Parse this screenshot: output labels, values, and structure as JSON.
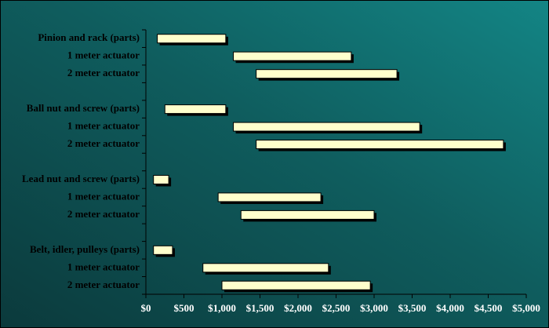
{
  "chart_data": {
    "type": "floating-bar",
    "categories": [
      "Pinion and rack (parts)",
      "1 meter actuator",
      "2 meter actuator",
      null,
      "Ball nut and screw (parts)",
      "1 meter actuator",
      "2 meter actuator",
      null,
      "Lead nut and screw (parts)",
      "1 meter actuator",
      "2 meter actuator",
      null,
      "Belt, idler, pulleys (parts)",
      "1 meter actuator",
      "2 meter actuator"
    ],
    "low": [
      150,
      1150,
      1450,
      null,
      250,
      1150,
      1450,
      null,
      100,
      950,
      1250,
      null,
      100,
      750,
      1000
    ],
    "high": [
      1050,
      2700,
      3300,
      null,
      1050,
      3600,
      4700,
      null,
      300,
      2300,
      3000,
      null,
      350,
      2400,
      2950
    ],
    "color": "#ffffcc",
    "xlim": [
      0,
      5000
    ],
    "xticks": [
      {
        "value": 0,
        "label": "$0"
      },
      {
        "value": 500,
        "label": "$500"
      },
      {
        "value": 1000,
        "label": "$1,000"
      },
      {
        "value": 1500,
        "label": "$1,500"
      },
      {
        "value": 2000,
        "label": "$2,000"
      },
      {
        "value": 2500,
        "label": "$2,500"
      },
      {
        "value": 3000,
        "label": "$3,000"
      },
      {
        "value": 3500,
        "label": "$3,500"
      },
      {
        "value": 4000,
        "label": "$4,000"
      },
      {
        "value": 4500,
        "label": "$4,500"
      },
      {
        "value": 5000,
        "label": "$5,000"
      }
    ]
  }
}
